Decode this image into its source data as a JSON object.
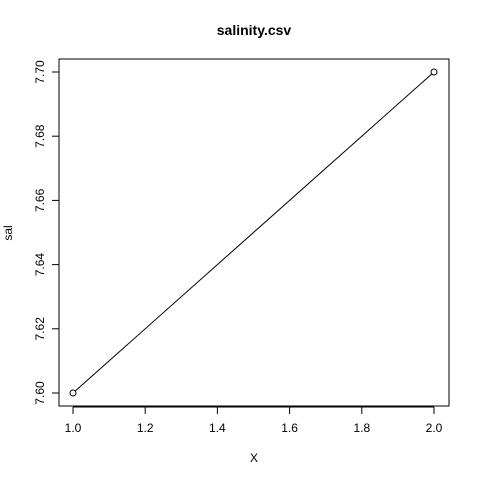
{
  "chart_data": {
    "type": "line",
    "title": "salinity.csv",
    "xlabel": "X",
    "ylabel": "sal",
    "x": [
      1.0,
      2.0
    ],
    "series": [
      {
        "values": [
          7.6,
          7.7
        ]
      }
    ],
    "xlim": [
      1.0,
      2.0
    ],
    "ylim": [
      7.6,
      7.7
    ],
    "xticks": [
      "1.0",
      "1.2",
      "1.4",
      "1.6",
      "1.8",
      "2.0"
    ],
    "yticks": [
      "7.60",
      "7.62",
      "7.64",
      "7.66",
      "7.68",
      "7.70"
    ],
    "markers": "open-circle",
    "grid": false,
    "legend": "none"
  }
}
